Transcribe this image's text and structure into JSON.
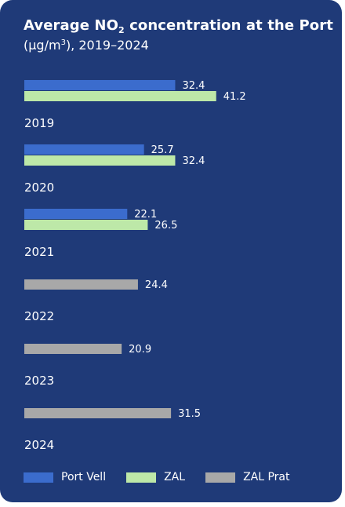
{
  "title": {
    "prefix": "Average NO",
    "sub": "2",
    "suffix": " concentration  at the Port",
    "line2_prefix": "(µg/m",
    "line2_sup": "3",
    "line2_suffix": "), 2019–2024"
  },
  "colors": {
    "background": "#1f3a78",
    "text": "#ffffff"
  },
  "chart_data": {
    "type": "bar",
    "orientation": "horizontal",
    "categories": [
      "2019",
      "2020",
      "2021",
      "2022",
      "2023",
      "2024"
    ],
    "series": [
      {
        "name": "Port Vell",
        "color": "#3b6ccd",
        "values": [
          32.4,
          25.7,
          22.1,
          null,
          null,
          null
        ]
      },
      {
        "name": "ZAL",
        "color": "#bde8a8",
        "values": [
          41.2,
          32.4,
          26.5,
          null,
          null,
          null
        ]
      },
      {
        "name": "ZAL Prat",
        "color": "#a8a8a8",
        "values": [
          null,
          null,
          null,
          24.4,
          20.9,
          31.5
        ]
      }
    ],
    "value_labels": true,
    "grid": false,
    "legend_position": "bottom"
  }
}
